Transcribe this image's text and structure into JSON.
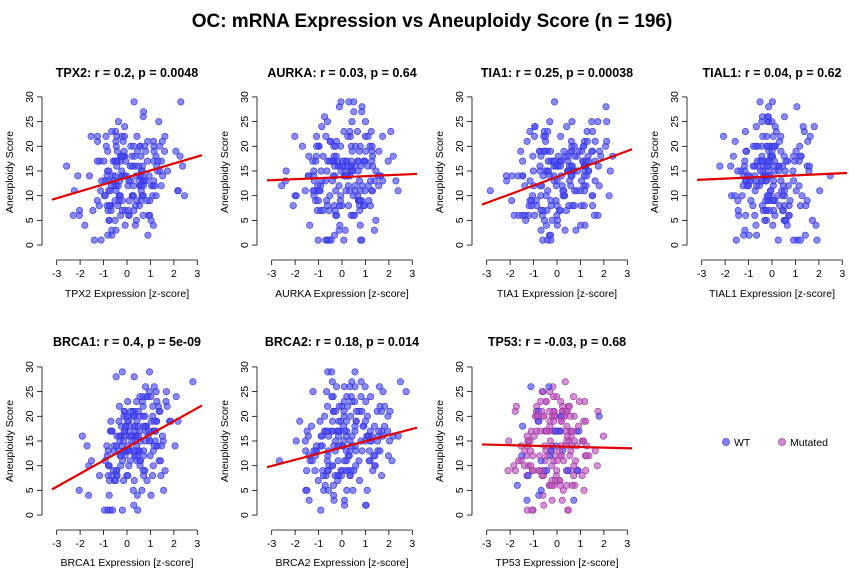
{
  "figure_title": "OC: mRNA Expression vs Aneuploidy Score (n = 196)",
  "colors": {
    "wt": "#4a4aff",
    "mutated": "#c052c0",
    "fit": "#e00000"
  },
  "legend": {
    "wt_label": "WT",
    "mutated_label": "Mutated"
  },
  "chart_data": [
    {
      "type": "scatter",
      "gene": "TPX2",
      "title": "TPX2: r = 0.2, p = 0.0048",
      "xlabel": "TPX2 Expression [z-score]",
      "ylabel": "Aneuploidy Score",
      "xlim": [
        -3.2,
        3.2
      ],
      "ylim": [
        -1,
        31
      ],
      "xticks": [
        -3,
        -2,
        -1,
        0,
        1,
        2,
        3
      ],
      "yticks": [
        0,
        5,
        10,
        15,
        20,
        25,
        30
      ],
      "fit": [
        [
          -3.2,
          9.2
        ],
        [
          3.2,
          18.2
        ]
      ],
      "x_center": 0.1,
      "x_spread": 0.95,
      "seed": 11
    },
    {
      "type": "scatter",
      "gene": "AURKA",
      "title": "AURKA: r = 0.03, p = 0.64",
      "xlabel": "AURKA Expression [z-score]",
      "ylabel": "Aneuploidy Score",
      "xlim": [
        -3.2,
        3.2
      ],
      "ylim": [
        -1,
        31
      ],
      "xticks": [
        -3,
        -2,
        -1,
        0,
        1,
        2,
        3
      ],
      "yticks": [
        0,
        5,
        10,
        15,
        20,
        25,
        30
      ],
      "fit": [
        [
          -3.2,
          13.1
        ],
        [
          3.2,
          14.4
        ]
      ],
      "x_center": 0.0,
      "x_spread": 0.95,
      "seed": 23
    },
    {
      "type": "scatter",
      "gene": "TIA1",
      "title": "TIA1: r = 0.25, p = 0.00038",
      "xlabel": "TIA1 Expression [z-score]",
      "ylabel": "Aneuploidy Score",
      "xlim": [
        -3.2,
        3.2
      ],
      "ylim": [
        -1,
        31
      ],
      "xticks": [
        -3,
        -2,
        -1,
        0,
        1,
        2,
        3
      ],
      "yticks": [
        0,
        5,
        10,
        15,
        20,
        25,
        30
      ],
      "fit": [
        [
          -3.2,
          8.2
        ],
        [
          3.2,
          19.4
        ]
      ],
      "x_center": 0.1,
      "x_spread": 0.95,
      "seed": 37
    },
    {
      "type": "scatter",
      "gene": "TIAL1",
      "title": "TIAL1: r = 0.04, p = 0.62",
      "xlabel": "TIAL1 Expression [z-score]",
      "ylabel": "Aneuploidy Score",
      "xlim": [
        -3.2,
        3.2
      ],
      "ylim": [
        -1,
        31
      ],
      "xticks": [
        -3,
        -2,
        -1,
        0,
        1,
        2,
        3
      ],
      "yticks": [
        0,
        5,
        10,
        15,
        20,
        25,
        30
      ],
      "fit": [
        [
          -3.2,
          13.2
        ],
        [
          3.2,
          14.6
        ]
      ],
      "x_center": 0.0,
      "x_spread": 0.95,
      "seed": 41
    },
    {
      "type": "scatter",
      "gene": "BRCA1",
      "title": "BRCA1: r = 0.4, p = 5e-09",
      "xlabel": "BRCA1 Expression [z-score]",
      "ylabel": "Aneuploidy Score",
      "xlim": [
        -3.2,
        3.2
      ],
      "ylim": [
        -1,
        31
      ],
      "xticks": [
        -3,
        -2,
        -1,
        0,
        1,
        2,
        3
      ],
      "yticks": [
        0,
        5,
        10,
        15,
        20,
        25,
        30
      ],
      "fit": [
        [
          -3.2,
          5.2
        ],
        [
          3.2,
          22.2
        ]
      ],
      "x_center": 0.35,
      "x_spread": 0.9,
      "seed": 53
    },
    {
      "type": "scatter",
      "gene": "BRCA2",
      "title": "BRCA2: r = 0.18, p = 0.014",
      "xlabel": "BRCA2 Expression [z-score]",
      "ylabel": "Aneuploidy Score",
      "xlim": [
        -3.2,
        3.2
      ],
      "ylim": [
        -1,
        31
      ],
      "xticks": [
        -3,
        -2,
        -1,
        0,
        1,
        2,
        3
      ],
      "yticks": [
        0,
        5,
        10,
        15,
        20,
        25,
        30
      ],
      "fit": [
        [
          -3.2,
          9.7
        ],
        [
          3.2,
          17.7
        ]
      ],
      "x_center": 0.1,
      "x_spread": 0.95,
      "seed": 67
    },
    {
      "type": "scatter",
      "gene": "TP53",
      "title": "TP53: r = -0.03, p = 0.68",
      "xlabel": "TP53 Expression [z-score]",
      "ylabel": "Aneuploidy Score",
      "xlim": [
        -3.2,
        3.2
      ],
      "ylim": [
        -1,
        31
      ],
      "xticks": [
        -3,
        -2,
        -1,
        0,
        1,
        2,
        3
      ],
      "yticks": [
        0,
        5,
        10,
        15,
        20,
        25,
        30
      ],
      "fit": [
        [
          -3.2,
          14.3
        ],
        [
          3.2,
          13.5
        ]
      ],
      "x_center": 0.0,
      "x_spread": 0.85,
      "seed": 79,
      "mutated_share": 0.85
    }
  ]
}
